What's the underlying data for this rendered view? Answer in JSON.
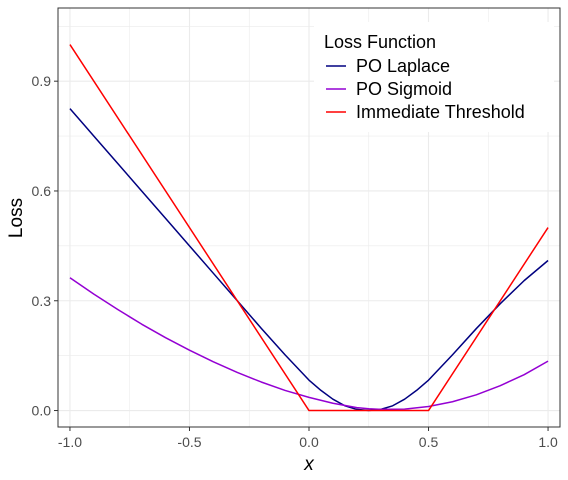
{
  "chart_data": {
    "type": "line",
    "xlabel": "x",
    "ylabel": "Loss",
    "xlim": [
      -1.05,
      1.05
    ],
    "ylim": [
      -0.045,
      1.1
    ],
    "x_ticks": [
      -1.0,
      -0.5,
      0.0,
      0.5,
      1.0
    ],
    "x_tick_labels": [
      "-1.0",
      "-0.5",
      "0.0",
      "0.5",
      "1.0"
    ],
    "y_ticks": [
      0.0,
      0.3,
      0.6,
      0.9
    ],
    "y_tick_labels": [
      "0.0",
      "0.3",
      "0.6",
      "0.9"
    ],
    "grid": true,
    "legend": {
      "title": "Loss Function",
      "placement": "top-right",
      "entries": [
        "PO Laplace",
        "PO Sigmoid",
        "Immediate Threshold"
      ]
    },
    "series": [
      {
        "name": "PO Laplace",
        "color": "#000080",
        "x": [
          -1.0,
          -0.9,
          -0.8,
          -0.7,
          -0.6,
          -0.5,
          -0.4,
          -0.3,
          -0.2,
          -0.1,
          0.0,
          0.05,
          0.1,
          0.15,
          0.2,
          0.25,
          0.3,
          0.35,
          0.4,
          0.45,
          0.5,
          0.6,
          0.7,
          0.8,
          0.9,
          1.0
        ],
        "y": [
          0.825,
          0.75,
          0.675,
          0.6,
          0.525,
          0.45,
          0.375,
          0.3,
          0.225,
          0.152,
          0.083,
          0.055,
          0.031,
          0.013,
          0.003,
          0.0,
          0.003,
          0.013,
          0.031,
          0.055,
          0.083,
          0.152,
          0.224,
          0.292,
          0.355,
          0.41
        ]
      },
      {
        "name": "PO Sigmoid",
        "color": "#9400D3",
        "x": [
          -1.0,
          -0.9,
          -0.8,
          -0.7,
          -0.6,
          -0.5,
          -0.4,
          -0.3,
          -0.2,
          -0.1,
          0.0,
          0.1,
          0.2,
          0.25,
          0.3,
          0.4,
          0.5,
          0.6,
          0.7,
          0.8,
          0.9,
          1.0
        ],
        "y": [
          0.363,
          0.318,
          0.276,
          0.236,
          0.199,
          0.165,
          0.133,
          0.104,
          0.078,
          0.055,
          0.036,
          0.02,
          0.008,
          0.005,
          0.003,
          0.004,
          0.011,
          0.024,
          0.043,
          0.068,
          0.098,
          0.135
        ]
      },
      {
        "name": "Immediate Threshold",
        "color": "#FF0000",
        "x": [
          -1.0,
          0.0,
          0.5,
          1.0
        ],
        "y": [
          1.0,
          0.0,
          0.0,
          0.5
        ]
      }
    ]
  }
}
